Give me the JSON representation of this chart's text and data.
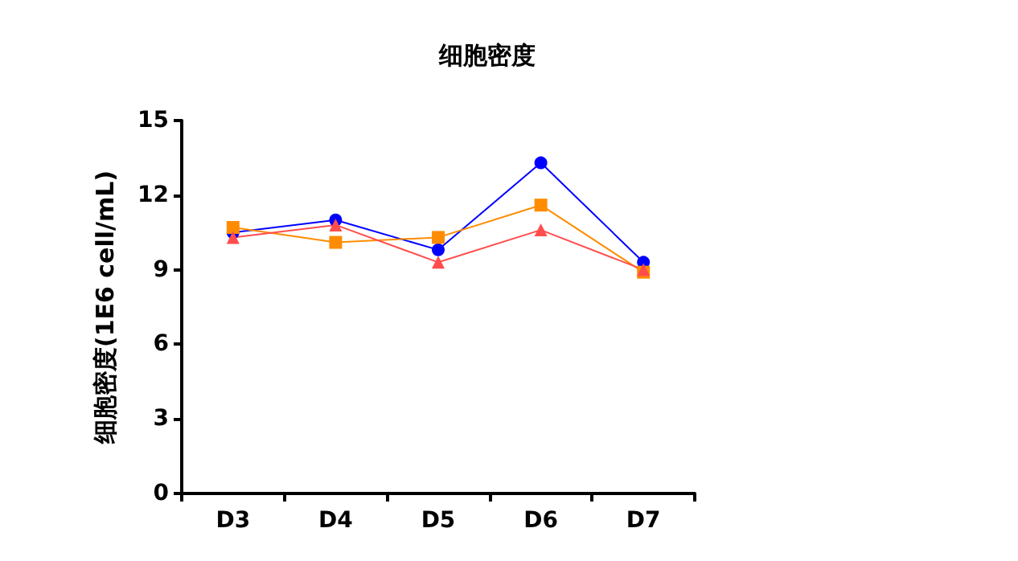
{
  "chart_data": {
    "type": "line",
    "title": "细胞密度",
    "ylabel": "细胞密度(1E6 cell/mL)",
    "categories": [
      "D3",
      "D4",
      "D5",
      "D6",
      "D7"
    ],
    "series": [
      {
        "color": "#0000ff",
        "marker": "circle",
        "values": [
          10.5,
          11.0,
          9.8,
          13.3,
          9.3
        ]
      },
      {
        "color": "#ff8c00",
        "marker": "square",
        "values": [
          10.7,
          10.1,
          10.3,
          11.6,
          8.9
        ]
      },
      {
        "color": "#ff4d4d",
        "marker": "triangle",
        "values": [
          10.3,
          10.8,
          9.3,
          10.6,
          9.0
        ]
      }
    ],
    "ylim": [
      0,
      15
    ],
    "yticks": [
      0,
      3,
      6,
      9,
      12,
      15
    ],
    "grid": false
  }
}
